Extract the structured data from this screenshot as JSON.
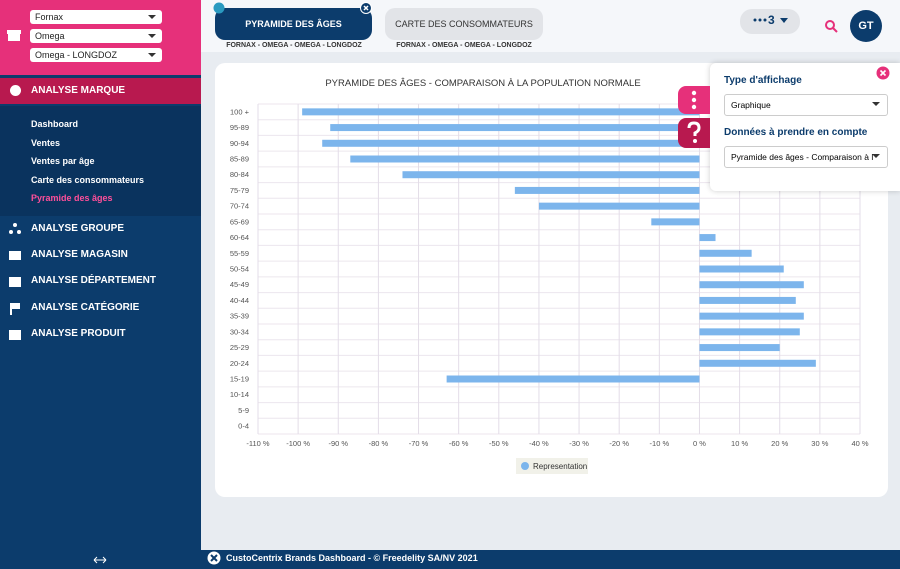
{
  "sidebar": {
    "selects": [
      "Fornax",
      "Omega",
      "Omega - LONGDOZ"
    ],
    "active_section": "ANALYSE MARQUE",
    "submenu": [
      "Dashboard",
      "Ventes",
      "Ventes par âge",
      "Carte des consommateurs",
      "Pyramide des âges"
    ],
    "sections": [
      "ANALYSE GROUPE",
      "ANALYSE MAGASIN",
      "ANALYSE DÉPARTEMENT",
      "ANALYSE CATÉGORIE",
      "ANALYSE PRODUIT"
    ]
  },
  "tabs": [
    {
      "label": "PYRAMIDE DES ÂGES",
      "subtitle": "FORNAX - OMEGA - OMEGA - LONGDOZ"
    },
    {
      "label": "CARTE DES CONSOMMATEURS",
      "subtitle": "FORNAX - OMEGA - OMEGA - LONGDOZ"
    }
  ],
  "toolbar": {
    "count": "3",
    "avatar": "GT"
  },
  "panel": {
    "display_label": "Type d'affichage",
    "display_value": "Graphique",
    "data_label": "Données à prendre en compte",
    "data_value": "Pyramide des âges - Comparaison à l"
  },
  "footer": "CustoCentrix Brands Dashboard - © Freedelity SA/NV 2021",
  "chart_data": {
    "type": "bar",
    "orientation": "horizontal",
    "title": "PYRAMIDE DES ÂGES - COMPARAISON À LA POPULATION NORMALE",
    "categories": [
      "100 +",
      "95-89",
      "90-94",
      "85-89",
      "80-84",
      "75-79",
      "70-74",
      "65-69",
      "60-64",
      "55-59",
      "50-54",
      "45-49",
      "40-44",
      "35-39",
      "30-34",
      "25-29",
      "20-24",
      "15-19",
      "10-14",
      "5-9",
      "0-4"
    ],
    "series": [
      {
        "name": "Representation",
        "color": "#7cb5ec",
        "values": [
          -99,
          -92,
          -94,
          -87,
          -74,
          -46,
          -40,
          -12,
          4,
          13,
          21,
          26,
          24,
          26,
          25,
          20,
          29,
          -63,
          0,
          0,
          0
        ]
      }
    ],
    "xlim": [
      -110,
      40
    ],
    "xticks": [
      {
        "value": -110,
        "label": "-110 %"
      },
      {
        "value": -100,
        "label": "-100 %"
      },
      {
        "value": -90,
        "label": "-90 %"
      },
      {
        "value": -80,
        "label": "-80 %"
      },
      {
        "value": -70,
        "label": "-70 %"
      },
      {
        "value": -60,
        "label": "-60 %"
      },
      {
        "value": -50,
        "label": "-50 %"
      },
      {
        "value": -40,
        "label": "-40 %"
      },
      {
        "value": -30,
        "label": "-30 %"
      },
      {
        "value": -20,
        "label": "-20 %"
      },
      {
        "value": -10,
        "label": "-10 %"
      },
      {
        "value": 0,
        "label": "0 %"
      },
      {
        "value": 10,
        "label": "10 %"
      },
      {
        "value": 20,
        "label": "20 %"
      },
      {
        "value": 30,
        "label": "30 %"
      },
      {
        "value": 40,
        "label": "40 %"
      }
    ],
    "grid": true,
    "legend": "bottom"
  }
}
